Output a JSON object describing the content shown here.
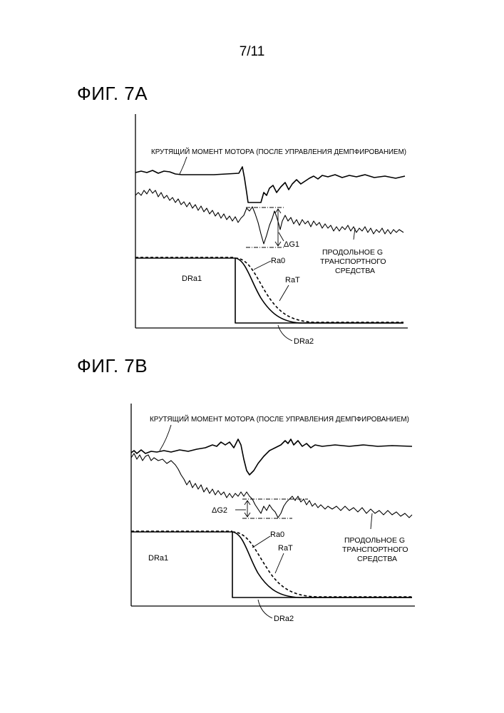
{
  "page_number": "7/11",
  "figures": [
    {
      "title": "ФИГ. 7А",
      "labels": {
        "motor_torque": "КРУТЯЩИЙ МОМЕНТ МОТОРА (ПОСЛЕ УПРАВЛЕНИЯ ДЕМПФИРОВАНИЕМ)",
        "delta_g": "ΔG1",
        "longitudinal_g": [
          "ПРОДОЛЬНОЕ G",
          "ТРАНСПОРТНОГО",
          "СРЕДСТВА"
        ],
        "ra0": "Ra0",
        "rat": "RaT",
        "dra1": "DRa1",
        "dra2": "DRa2"
      }
    },
    {
      "title": "ФИГ. 7В",
      "labels": {
        "motor_torque": "КРУТЯЩИЙ МОМЕНТ МОТОРА (ПОСЛЕ УПРАВЛЕНИЯ ДЕМПФИРОВАНИЕМ)",
        "delta_g": "ΔG2",
        "longitudinal_g": [
          "ПРОДОЛЬНОЕ G",
          "ТРАНСПОРТНОГО",
          "СРЕДСТВА"
        ],
        "ra0": "Ra0",
        "rat": "RaT",
        "dra1": "DRa1",
        "dra2": "DRa2"
      }
    }
  ]
}
